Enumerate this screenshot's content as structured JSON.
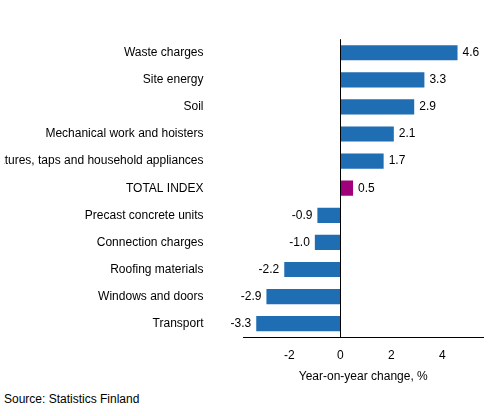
{
  "chart_data": {
    "type": "bar",
    "orientation": "horizontal",
    "categories": [
      "Waste charges",
      "Site energy",
      "Soil",
      "Mechanical work and hoisters",
      "Fixtures, taps and household appliances",
      "TOTAL INDEX",
      "Precast concrete units",
      "Connection charges",
      "Roofing materials",
      "Windows and doors",
      "Transport"
    ],
    "values": [
      4.6,
      3.3,
      2.9,
      2.1,
      1.7,
      0.5,
      -0.9,
      -1.0,
      -2.2,
      -2.9,
      -3.3
    ],
    "value_labels": [
      "4.6",
      "3.3",
      "2.9",
      "2.1",
      "1.7",
      "0.5",
      "-0.9",
      "-1.0",
      "-2.2",
      "-2.9",
      "-3.3"
    ],
    "colors": [
      "#1f6db3",
      "#1f6db3",
      "#1f6db3",
      "#1f6db3",
      "#1f6db3",
      "#a0007a",
      "#1f6db3",
      "#1f6db3",
      "#1f6db3",
      "#1f6db3",
      "#1f6db3"
    ],
    "x_label": "Year-on-year change, %",
    "source": "Source: Statistics Finland",
    "xlim": [
      -3.8,
      5.6
    ],
    "xticks": [
      -2,
      0,
      2,
      4
    ],
    "grid": false,
    "data_labels": true
  }
}
